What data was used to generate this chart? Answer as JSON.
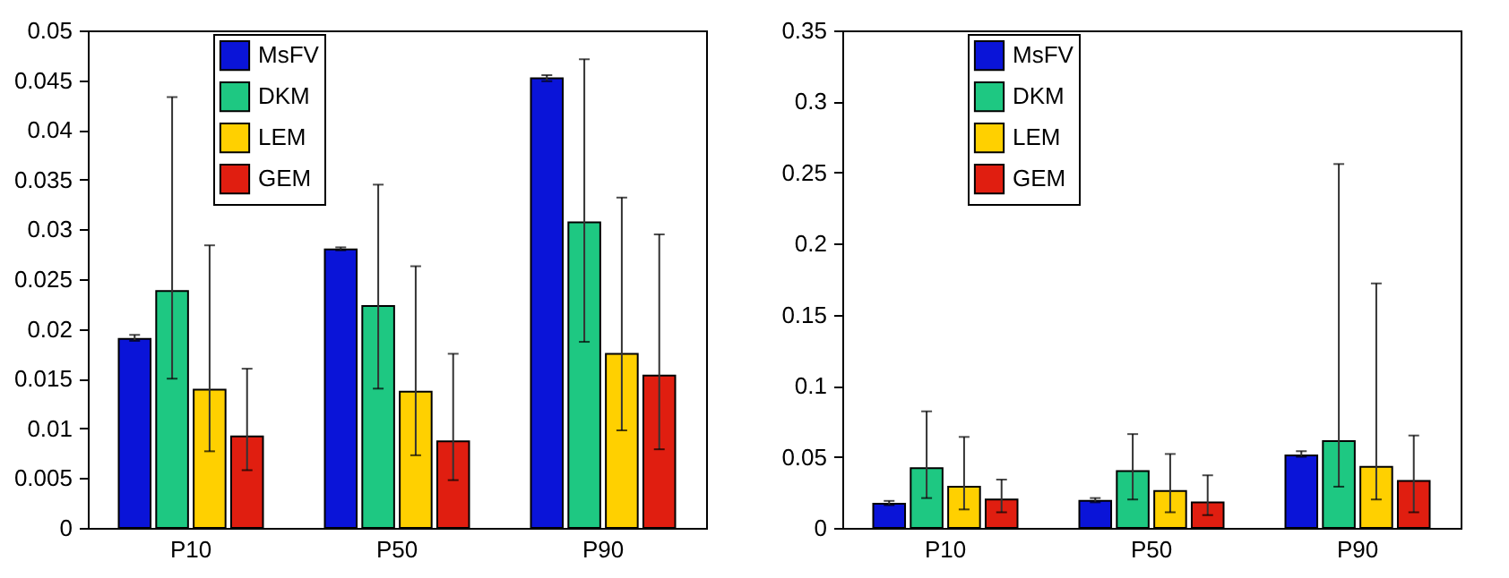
{
  "chart_data": [
    {
      "type": "bar",
      "categories": [
        "P10",
        "P50",
        "P90"
      ],
      "ylim": [
        0,
        0.05
      ],
      "yticks": [
        0,
        0.005,
        0.01,
        0.015,
        0.02,
        0.025,
        0.03,
        0.035,
        0.04,
        0.045,
        0.05
      ],
      "grid": false,
      "legend": "top left",
      "series": [
        {
          "name": "MsFV",
          "color": "#0a14d8",
          "values": [
            0.019,
            0.028,
            0.0452
          ],
          "errors": [
            [
              0.0188,
              0.0194
            ],
            [
              0.0279,
              0.0282
            ],
            [
              0.0449,
              0.0455
            ]
          ]
        },
        {
          "name": "DKM",
          "color": "#1ec882",
          "values": [
            0.0238,
            0.0223,
            0.0307
          ],
          "errors": [
            [
              0.015,
              0.0433
            ],
            [
              0.014,
              0.0345
            ],
            [
              0.0187,
              0.0471
            ]
          ]
        },
        {
          "name": "LEM",
          "color": "#ffd000",
          "values": [
            0.0139,
            0.0137,
            0.0175
          ],
          "errors": [
            [
              0.0077,
              0.0284
            ],
            [
              0.0073,
              0.0263
            ],
            [
              0.0098,
              0.0332
            ]
          ]
        },
        {
          "name": "GEM",
          "color": "#e01e10",
          "values": [
            0.0092,
            0.0087,
            0.0153
          ],
          "errors": [
            [
              0.0058,
              0.016
            ],
            [
              0.0048,
              0.0175
            ],
            [
              0.0079,
              0.0295
            ]
          ]
        }
      ]
    },
    {
      "type": "bar",
      "categories": [
        "P10",
        "P50",
        "P90"
      ],
      "ylim": [
        0,
        0.35
      ],
      "yticks": [
        0,
        0.05,
        0.1,
        0.15,
        0.2,
        0.25,
        0.3,
        0.35
      ],
      "grid": false,
      "legend": "top left",
      "series": [
        {
          "name": "MsFV",
          "color": "#0a14d8",
          "values": [
            0.017,
            0.019,
            0.051
          ],
          "errors": [
            [
              0.016,
              0.019
            ],
            [
              0.018,
              0.021
            ],
            [
              0.05,
              0.054
            ]
          ]
        },
        {
          "name": "DKM",
          "color": "#1ec882",
          "values": [
            0.042,
            0.04,
            0.061
          ],
          "errors": [
            [
              0.021,
              0.082
            ],
            [
              0.02,
              0.066
            ],
            [
              0.029,
              0.256
            ]
          ]
        },
        {
          "name": "LEM",
          "color": "#ffd000",
          "values": [
            0.029,
            0.026,
            0.043
          ],
          "errors": [
            [
              0.013,
              0.064
            ],
            [
              0.011,
              0.052
            ],
            [
              0.02,
              0.172
            ]
          ]
        },
        {
          "name": "GEM",
          "color": "#e01e10",
          "values": [
            0.02,
            0.018,
            0.033
          ],
          "errors": [
            [
              0.011,
              0.034
            ],
            [
              0.009,
              0.037
            ],
            [
              0.011,
              0.065
            ]
          ]
        }
      ]
    }
  ]
}
